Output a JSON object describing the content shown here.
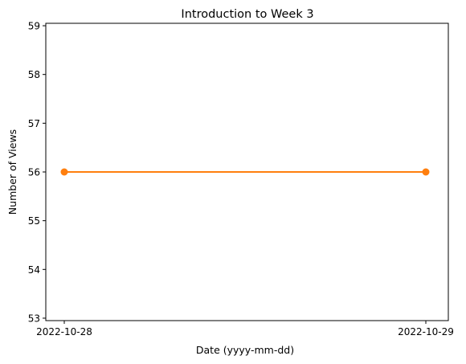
{
  "chart_data": {
    "type": "line",
    "title": "Introduction to Week 3",
    "xlabel": "Date (yyyy-mm-dd)",
    "ylabel": "Number of Views",
    "x": [
      "2022-10-28",
      "2022-10-29"
    ],
    "series": [
      {
        "values": [
          56,
          56
        ],
        "color": "#ff7f0e",
        "marker": "circle"
      }
    ],
    "ylim": [
      52.95,
      59.05
    ],
    "yticks": [
      53,
      54,
      55,
      56,
      57,
      58,
      59
    ],
    "xticks": [
      "2022-10-28",
      "2022-10-29"
    ],
    "grid": false,
    "legend": "none"
  }
}
